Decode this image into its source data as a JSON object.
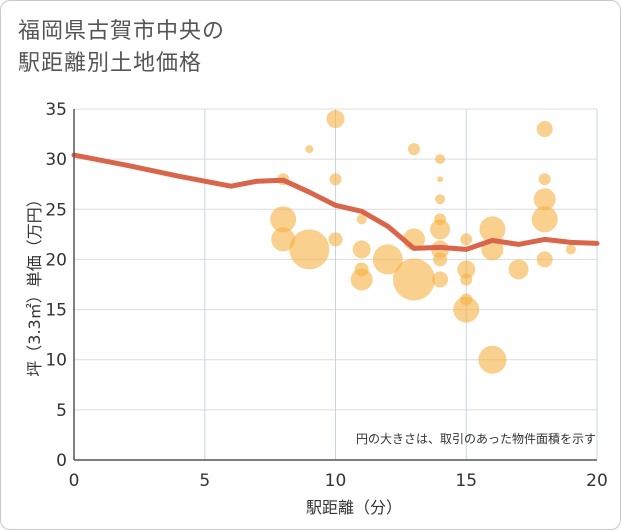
{
  "title_lines": [
    "福岡県古賀市中央の",
    "駅距離別土地価格"
  ],
  "chart_data": {
    "type": "scatter",
    "title": "福岡県古賀市中央の駅距離別土地価格",
    "xlabel": "駅距離（分）",
    "ylabel": "坪（3.3㎡）単価（万円）",
    "note": "円の大きさは、取引のあった物件面積を示す",
    "xlim": [
      0,
      20
    ],
    "ylim": [
      0,
      35
    ],
    "xticks": [
      "0",
      "5",
      "10",
      "15",
      "20"
    ],
    "yticks": [
      "0",
      "5",
      "10",
      "15",
      "20",
      "25",
      "30",
      "35"
    ],
    "grid": true,
    "bubble_color": "#f5b041",
    "line_color": "#d9654a",
    "points": [
      {
        "x": 8,
        "y": 28,
        "size": 6
      },
      {
        "x": 8,
        "y": 24,
        "size": 13
      },
      {
        "x": 8,
        "y": 22,
        "size": 12
      },
      {
        "x": 9,
        "y": 31,
        "size": 4
      },
      {
        "x": 9,
        "y": 21,
        "size": 20
      },
      {
        "x": 10,
        "y": 34,
        "size": 9
      },
      {
        "x": 10,
        "y": 28,
        "size": 6
      },
      {
        "x": 10,
        "y": 22,
        "size": 7
      },
      {
        "x": 11,
        "y": 24,
        "size": 5
      },
      {
        "x": 11,
        "y": 21,
        "size": 9
      },
      {
        "x": 11,
        "y": 19,
        "size": 7
      },
      {
        "x": 11,
        "y": 18,
        "size": 11
      },
      {
        "x": 12,
        "y": 20,
        "size": 15
      },
      {
        "x": 13,
        "y": 31,
        "size": 6
      },
      {
        "x": 13,
        "y": 22,
        "size": 11
      },
      {
        "x": 13,
        "y": 18,
        "size": 21
      },
      {
        "x": 14,
        "y": 30,
        "size": 5
      },
      {
        "x": 14,
        "y": 28,
        "size": 3
      },
      {
        "x": 14,
        "y": 26,
        "size": 5
      },
      {
        "x": 14,
        "y": 24,
        "size": 6
      },
      {
        "x": 14,
        "y": 23,
        "size": 10
      },
      {
        "x": 14,
        "y": 21,
        "size": 9
      },
      {
        "x": 14,
        "y": 20,
        "size": 7
      },
      {
        "x": 14,
        "y": 18,
        "size": 8
      },
      {
        "x": 15,
        "y": 22,
        "size": 6
      },
      {
        "x": 15,
        "y": 19,
        "size": 9
      },
      {
        "x": 15,
        "y": 18,
        "size": 6
      },
      {
        "x": 15,
        "y": 16,
        "size": 6
      },
      {
        "x": 15,
        "y": 15,
        "size": 13
      },
      {
        "x": 16,
        "y": 23,
        "size": 13
      },
      {
        "x": 16,
        "y": 21,
        "size": 11
      },
      {
        "x": 16,
        "y": 10,
        "size": 14
      },
      {
        "x": 17,
        "y": 19,
        "size": 10
      },
      {
        "x": 18,
        "y": 33,
        "size": 8
      },
      {
        "x": 18,
        "y": 28,
        "size": 6
      },
      {
        "x": 18,
        "y": 26,
        "size": 11
      },
      {
        "x": 18,
        "y": 24,
        "size": 13
      },
      {
        "x": 18,
        "y": 20,
        "size": 8
      },
      {
        "x": 19,
        "y": 21,
        "size": 5
      }
    ],
    "trend": [
      {
        "x": 0,
        "y": 30.4
      },
      {
        "x": 2,
        "y": 29.4
      },
      {
        "x": 4,
        "y": 28.3
      },
      {
        "x": 6,
        "y": 27.3
      },
      {
        "x": 7,
        "y": 27.8
      },
      {
        "x": 8,
        "y": 27.9
      },
      {
        "x": 9,
        "y": 26.7
      },
      {
        "x": 10,
        "y": 25.4
      },
      {
        "x": 11,
        "y": 24.8
      },
      {
        "x": 12,
        "y": 23.3
      },
      {
        "x": 13,
        "y": 21.1
      },
      {
        "x": 14,
        "y": 21.2
      },
      {
        "x": 15,
        "y": 21.0
      },
      {
        "x": 16,
        "y": 21.9
      },
      {
        "x": 17,
        "y": 21.5
      },
      {
        "x": 18,
        "y": 22.0
      },
      {
        "x": 19,
        "y": 21.7
      },
      {
        "x": 20,
        "y": 21.6
      }
    ]
  }
}
